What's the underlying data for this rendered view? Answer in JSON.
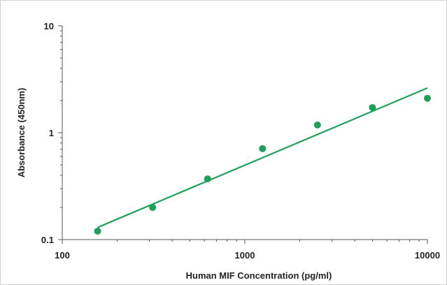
{
  "chart_data": {
    "type": "scatter",
    "title": "",
    "xlabel": "Human MIF Concentration (pg/ml)",
    "ylabel": "Absorbance (450nm)",
    "x_scale": "log",
    "y_scale": "log",
    "xlim": [
      100,
      10000
    ],
    "ylim": [
      0.1,
      10
    ],
    "x_ticks": [
      100,
      1000,
      10000
    ],
    "x_tick_labels": [
      "100",
      "1000",
      "10000"
    ],
    "y_ticks": [
      0.1,
      1,
      10
    ],
    "y_tick_labels": [
      "0.1",
      "1",
      "10"
    ],
    "grid": false,
    "legend": "none",
    "series": [
      {
        "kind": "points",
        "x": [
          156.25,
          312.5,
          625,
          1250,
          2500,
          5000,
          10000
        ],
        "y": [
          0.12,
          0.2,
          0.37,
          0.71,
          1.18,
          1.72,
          2.1
        ],
        "color": "#1fa05a"
      },
      {
        "kind": "fit-line",
        "x": [
          156.25,
          10000
        ],
        "y": [
          0.13,
          2.62
        ],
        "color": "#1fa05a"
      }
    ]
  }
}
